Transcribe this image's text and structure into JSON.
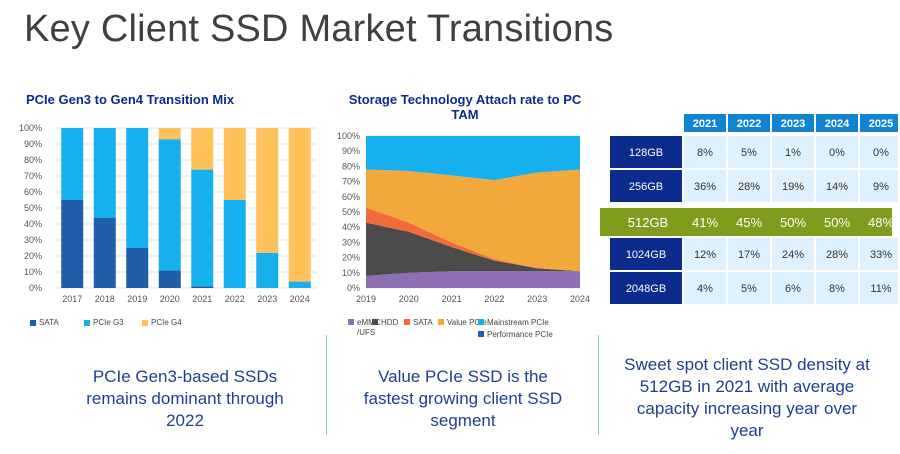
{
  "title": "Key Client SSD Market Transitions",
  "left": {
    "subtitle": "PCIe Gen3 to Gen4 Transition Mix",
    "caption": "PCIe Gen3-based SSDs remains dominant through 2022"
  },
  "middle": {
    "subtitle": "Storage Technology Attach rate to PC TAM",
    "caption": "Value PCIe SSD is the fastest growing client SSD segment"
  },
  "right": {
    "caption": "Sweet spot client SSD density at 512GB in 2021 with average capacity increasing year over year"
  },
  "colors": {
    "sata": "#1f5fa8",
    "g3": "#17b0ef",
    "g4": "#ffc15a",
    "emmc": "#8d6fb3",
    "hdd": "#4b4b4b",
    "sata_mid": "#f26b38",
    "value": "#f2a93b",
    "mainstream": "#17b0ef",
    "performance": "#1f5fa8",
    "table_header": "#1183d3",
    "table_label": "#0b2c8c",
    "table_cell": "#dff1ff",
    "highlight": "#7f9c1c"
  },
  "chart_data": [
    {
      "type": "bar",
      "stacked": true,
      "title": "PCIe Gen3 to Gen4 Transition Mix",
      "categories": [
        "2017",
        "2018",
        "2019",
        "2020",
        "2021",
        "2022",
        "2023",
        "2024"
      ],
      "yticks": [
        "0%",
        "10%",
        "20%",
        "30%",
        "40%",
        "50%",
        "60%",
        "70%",
        "80%",
        "90%",
        "100%"
      ],
      "ylim": [
        0,
        100
      ],
      "series": [
        {
          "name": "SATA",
          "values": [
            55,
            44,
            25,
            11,
            1,
            0,
            0,
            0
          ]
        },
        {
          "name": "PCIe G3",
          "values": [
            45,
            56,
            75,
            82,
            73,
            55,
            22,
            4
          ]
        },
        {
          "name": "PCIe G4",
          "values": [
            0,
            0,
            0,
            7,
            26,
            45,
            78,
            96
          ]
        }
      ],
      "legend_position": "bottom",
      "grid": true
    },
    {
      "type": "area",
      "stacked": true,
      "title": "Storage Technology Attach rate to PC TAM",
      "x": [
        "2019",
        "2020",
        "2021",
        "2022",
        "2023",
        "2024"
      ],
      "yticks": [
        "0%",
        "10%",
        "20%",
        "30%",
        "40%",
        "50%",
        "60%",
        "70%",
        "80%",
        "90%",
        "100%"
      ],
      "ylim": [
        0,
        100
      ],
      "series": [
        {
          "name": "eMMC /UFS",
          "values": [
            8,
            10,
            11,
            11,
            11,
            11
          ]
        },
        {
          "name": "HDD",
          "values": [
            35,
            27,
            16,
            7,
            2,
            0
          ]
        },
        {
          "name": "SATA",
          "values": [
            10,
            6,
            3,
            1,
            0,
            0
          ]
        },
        {
          "name": "Value PCIe",
          "values": [
            25,
            34,
            44,
            52,
            63,
            67
          ]
        },
        {
          "name": "Mainstream PCIe",
          "values": [
            22,
            23,
            26,
            29,
            24,
            22
          ]
        },
        {
          "name": "Performance PCIe",
          "values": [
            0,
            0,
            0,
            0,
            0,
            0
          ]
        }
      ],
      "legend_position": "bottom",
      "grid": true
    },
    {
      "type": "table",
      "columns": [
        "2021",
        "2022",
        "2023",
        "2024",
        "2025"
      ],
      "rows": [
        {
          "label": "128GB",
          "values": [
            "8%",
            "5%",
            "1%",
            "0%",
            "0%"
          ],
          "highlight": false
        },
        {
          "label": "256GB",
          "values": [
            "36%",
            "28%",
            "19%",
            "14%",
            "9%"
          ],
          "highlight": false
        },
        {
          "label": "512GB",
          "values": [
            "41%",
            "45%",
            "50%",
            "50%",
            "48%"
          ],
          "highlight": true
        },
        {
          "label": "1024GB",
          "values": [
            "12%",
            "17%",
            "24%",
            "28%",
            "33%"
          ],
          "highlight": false
        },
        {
          "label": "2048GB",
          "values": [
            "4%",
            "5%",
            "6%",
            "8%",
            "11%"
          ],
          "highlight": false
        }
      ]
    }
  ]
}
